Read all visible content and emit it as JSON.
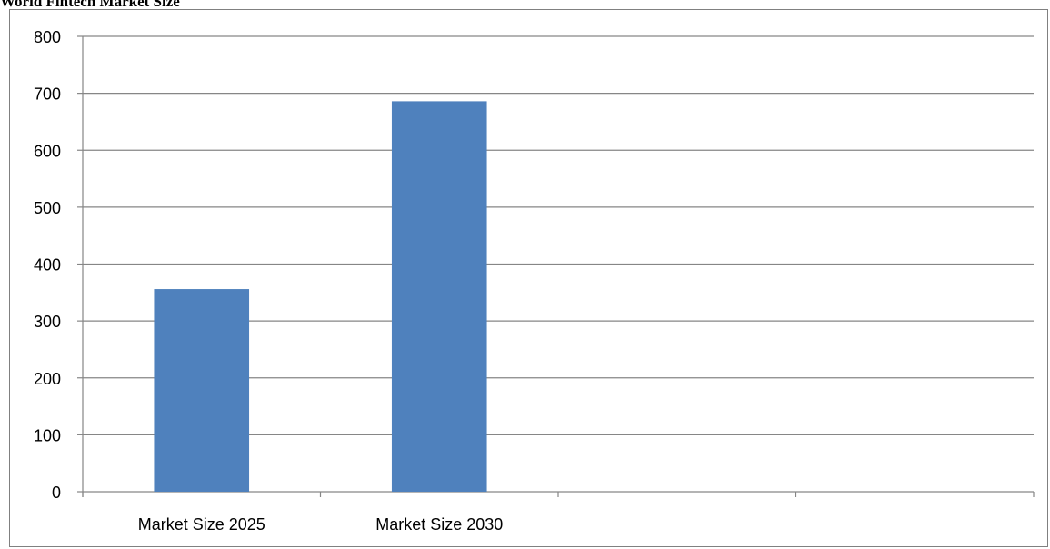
{
  "chart_data": {
    "type": "bar",
    "title": "World Fintech Market Size",
    "xlabel": "",
    "ylabel": "",
    "categories": [
      "Market Size 2025",
      "Market Size 2030",
      "",
      ""
    ],
    "values": [
      356,
      686,
      null,
      null
    ],
    "ylim": [
      0,
      800
    ],
    "yticks": [
      0,
      100,
      200,
      300,
      400,
      500,
      600,
      700,
      800
    ],
    "grid": true,
    "legend": "none",
    "bar_color": "#4f81bd",
    "gridline_color": "#868686"
  }
}
